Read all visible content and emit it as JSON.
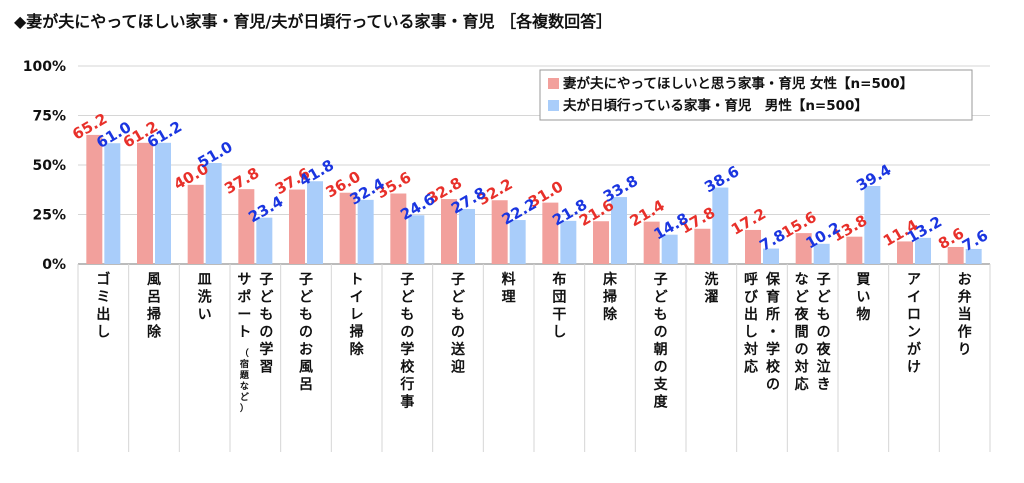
{
  "title": "◆妻が夫にやってほしい家事・育児/夫が日頃行っている家事・育児 ［各複数回答］",
  "chart_data": {
    "type": "bar",
    "ylim": [
      0,
      100
    ],
    "yticks": [
      "0%",
      "25%",
      "50%",
      "75%",
      "100%"
    ],
    "legend_position": "top-right",
    "categories": [
      {
        "lines": [
          "ゴミ出し"
        ]
      },
      {
        "lines": [
          "風呂掃除"
        ]
      },
      {
        "lines": [
          "皿洗い"
        ]
      },
      {
        "lines": [
          "サポート",
          "子どもの学習"
        ],
        "note": "（宿題など）"
      },
      {
        "lines": [
          "子どものお風呂"
        ]
      },
      {
        "lines": [
          "トイレ掃除"
        ]
      },
      {
        "lines": [
          "子どもの学校行事"
        ]
      },
      {
        "lines": [
          "子どもの送迎"
        ]
      },
      {
        "lines": [
          "料理"
        ]
      },
      {
        "lines": [
          "布団干し"
        ]
      },
      {
        "lines": [
          "床掃除"
        ]
      },
      {
        "lines": [
          "子どもの朝の支度"
        ]
      },
      {
        "lines": [
          "洗濯"
        ]
      },
      {
        "lines": [
          "呼び出し対応",
          "保育所・学校の"
        ]
      },
      {
        "lines": [
          "など夜間の対応",
          "子どもの夜泣き"
        ]
      },
      {
        "lines": [
          "買い物"
        ]
      },
      {
        "lines": [
          "アイロンがけ"
        ]
      },
      {
        "lines": [
          "お弁当作り"
        ]
      }
    ],
    "series": [
      {
        "name": "妻が夫にやってほしいと思う家事・育児 女性【n=500】",
        "color": "#f2a09c",
        "label_color": "#e8302a",
        "values": [
          65.2,
          61.2,
          40.0,
          37.8,
          37.6,
          36.0,
          35.6,
          32.8,
          32.2,
          31.0,
          21.6,
          21.4,
          17.8,
          17.2,
          15.6,
          13.8,
          11.4,
          8.6
        ]
      },
      {
        "name": "夫が日頃行っている家事・育児　男性【n=500】",
        "color": "#a9cdfa",
        "label_color": "#1a35e0",
        "values": [
          61.0,
          61.2,
          51.0,
          23.4,
          41.8,
          32.4,
          24.6,
          27.8,
          22.2,
          21.8,
          33.8,
          14.8,
          38.6,
          7.8,
          10.2,
          39.4,
          13.2,
          7.6
        ]
      }
    ]
  }
}
